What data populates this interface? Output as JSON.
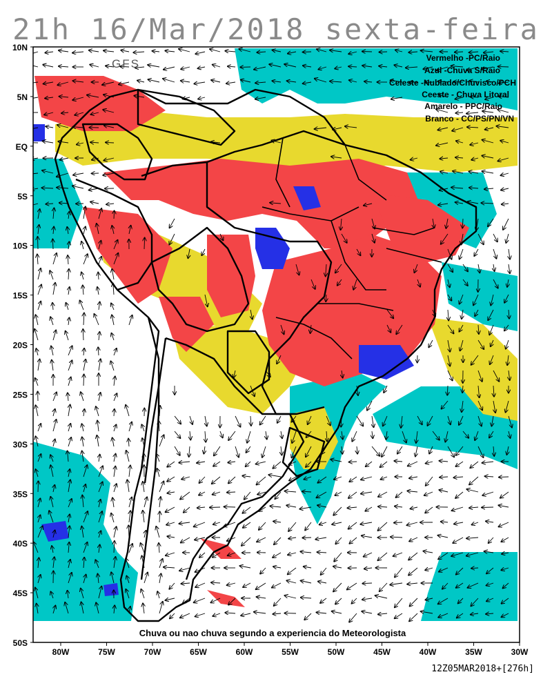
{
  "title": "21h 16/Mar/2018 sexta-feira",
  "model": "GFS",
  "legend": [
    "Vermelho  -PC/Raio",
    "Azul  -Chuva S/Raio",
    "Celeste  -Nublado/Chuvisco/PCH",
    "Ceeste  - Chuva Litoral",
    "Amarelo  - PPC/Raio",
    "Branco  -  CC/PS/PN/VN"
  ],
  "note": "Chuva ou nao chuva segundo a experiencia do Meteorologista",
  "footer": "12Z05MAR2018+[276h]",
  "lat_labels": [
    "10N",
    "5N",
    "EQ",
    "5S",
    "10S",
    "15S",
    "20S",
    "25S",
    "30S",
    "35S",
    "40S",
    "45S",
    "50S"
  ],
  "lon_labels": [
    "80W",
    "75W",
    "70W",
    "65W",
    "60W",
    "55W",
    "50W",
    "45W",
    "40W",
    "35W",
    "30W"
  ],
  "colors": {
    "red": "#f34547",
    "yellow": "#e8d92e",
    "cyan": "#00c7c6",
    "blue": "#2530e6",
    "white": "#ffffff",
    "border": "#000000"
  }
}
